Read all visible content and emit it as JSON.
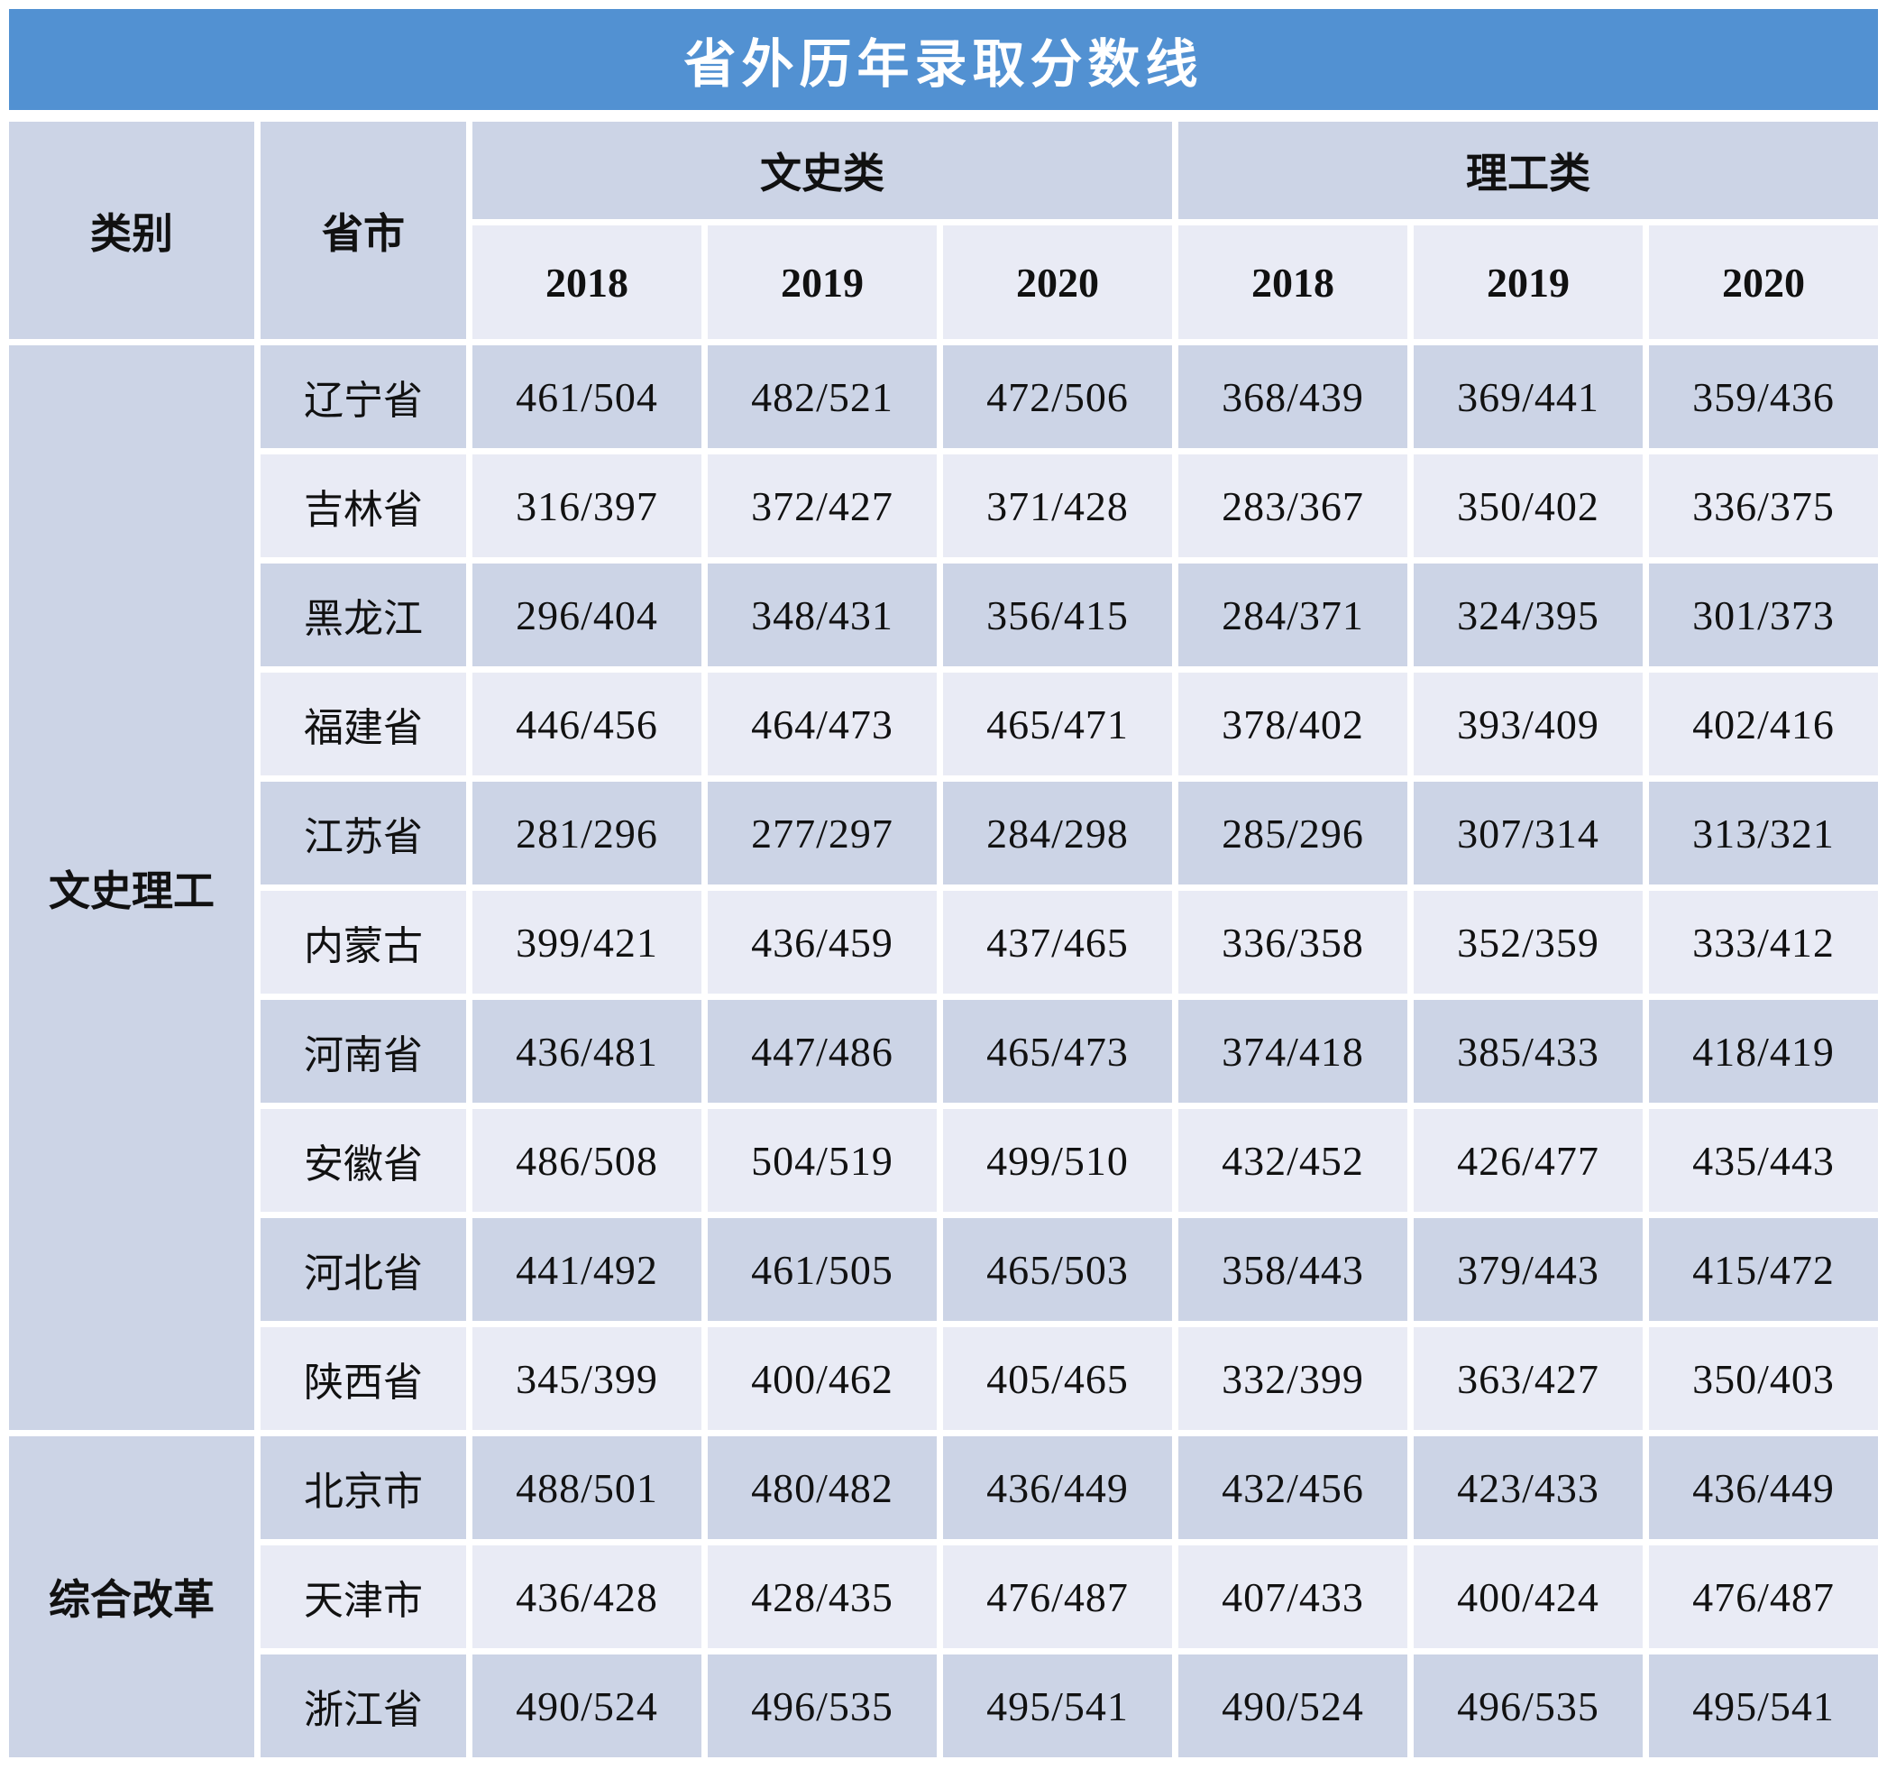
{
  "title": "省外历年录取分数线",
  "colors": {
    "title_bg": "#5291D2",
    "title_fg": "#FFFFFF",
    "cell_dark": "#CCD4E6",
    "cell_light": "#E9EBF5",
    "text": "#111111",
    "page_bg": "#FFFFFF"
  },
  "header": {
    "category": "类别",
    "province": "省市",
    "groups": [
      {
        "label": "文史类",
        "years": [
          "2018",
          "2019",
          "2020"
        ]
      },
      {
        "label": "理工类",
        "years": [
          "2018",
          "2019",
          "2020"
        ]
      }
    ]
  },
  "sections": [
    {
      "category": "文史理工",
      "rows": [
        {
          "province": "辽宁省",
          "values": [
            "461/504",
            "482/521",
            "472/506",
            "368/439",
            "369/441",
            "359/436"
          ]
        },
        {
          "province": "吉林省",
          "values": [
            "316/397",
            "372/427",
            "371/428",
            "283/367",
            "350/402",
            "336/375"
          ]
        },
        {
          "province": "黑龙江",
          "values": [
            "296/404",
            "348/431",
            "356/415",
            "284/371",
            "324/395",
            "301/373"
          ]
        },
        {
          "province": "福建省",
          "values": [
            "446/456",
            "464/473",
            "465/471",
            "378/402",
            "393/409",
            "402/416"
          ]
        },
        {
          "province": "江苏省",
          "values": [
            "281/296",
            "277/297",
            "284/298",
            "285/296",
            "307/314",
            "313/321"
          ]
        },
        {
          "province": "内蒙古",
          "values": [
            "399/421",
            "436/459",
            "437/465",
            "336/358",
            "352/359",
            "333/412"
          ]
        },
        {
          "province": "河南省",
          "values": [
            "436/481",
            "447/486",
            "465/473",
            "374/418",
            "385/433",
            "418/419"
          ]
        },
        {
          "province": "安徽省",
          "values": [
            "486/508",
            "504/519",
            "499/510",
            "432/452",
            "426/477",
            "435/443"
          ]
        },
        {
          "province": "河北省",
          "values": [
            "441/492",
            "461/505",
            "465/503",
            "358/443",
            "379/443",
            "415/472"
          ]
        },
        {
          "province": "陕西省",
          "values": [
            "345/399",
            "400/462",
            "405/465",
            "332/399",
            "363/427",
            "350/403"
          ]
        }
      ]
    },
    {
      "category": "综合改革",
      "rows": [
        {
          "province": "北京市",
          "values": [
            "488/501",
            "480/482",
            "436/449",
            "432/456",
            "423/433",
            "436/449"
          ]
        },
        {
          "province": "天津市",
          "values": [
            "436/428",
            "428/435",
            "476/487",
            "407/433",
            "400/424",
            "476/487"
          ]
        },
        {
          "province": "浙江省",
          "values": [
            "490/524",
            "496/535",
            "495/541",
            "490/524",
            "496/535",
            "495/541"
          ]
        }
      ]
    }
  ],
  "chart_data": {
    "type": "table",
    "title": "省外历年录取分数线",
    "columns": [
      "类别",
      "省市",
      "文史类 2018",
      "文史类 2019",
      "文史类 2020",
      "理工类 2018",
      "理工类 2019",
      "理工类 2020"
    ],
    "rows": [
      [
        "文史理工",
        "辽宁省",
        "461/504",
        "482/521",
        "472/506",
        "368/439",
        "369/441",
        "359/436"
      ],
      [
        "文史理工",
        "吉林省",
        "316/397",
        "372/427",
        "371/428",
        "283/367",
        "350/402",
        "336/375"
      ],
      [
        "文史理工",
        "黑龙江",
        "296/404",
        "348/431",
        "356/415",
        "284/371",
        "324/395",
        "301/373"
      ],
      [
        "文史理工",
        "福建省",
        "446/456",
        "464/473",
        "465/471",
        "378/402",
        "393/409",
        "402/416"
      ],
      [
        "文史理工",
        "江苏省",
        "281/296",
        "277/297",
        "284/298",
        "285/296",
        "307/314",
        "313/321"
      ],
      [
        "文史理工",
        "内蒙古",
        "399/421",
        "436/459",
        "437/465",
        "336/358",
        "352/359",
        "333/412"
      ],
      [
        "文史理工",
        "河南省",
        "436/481",
        "447/486",
        "465/473",
        "374/418",
        "385/433",
        "418/419"
      ],
      [
        "文史理工",
        "安徽省",
        "486/508",
        "504/519",
        "499/510",
        "432/452",
        "426/477",
        "435/443"
      ],
      [
        "文史理工",
        "河北省",
        "441/492",
        "461/505",
        "465/503",
        "358/443",
        "379/443",
        "415/472"
      ],
      [
        "文史理工",
        "陕西省",
        "345/399",
        "400/462",
        "405/465",
        "332/399",
        "363/427",
        "350/403"
      ],
      [
        "综合改革",
        "北京市",
        "488/501",
        "480/482",
        "436/449",
        "432/456",
        "423/433",
        "436/449"
      ],
      [
        "综合改革",
        "天津市",
        "436/428",
        "428/435",
        "476/487",
        "407/433",
        "400/424",
        "476/487"
      ],
      [
        "综合改革",
        "浙江省",
        "490/524",
        "496/535",
        "495/541",
        "490/524",
        "496/535",
        "495/541"
      ]
    ]
  }
}
